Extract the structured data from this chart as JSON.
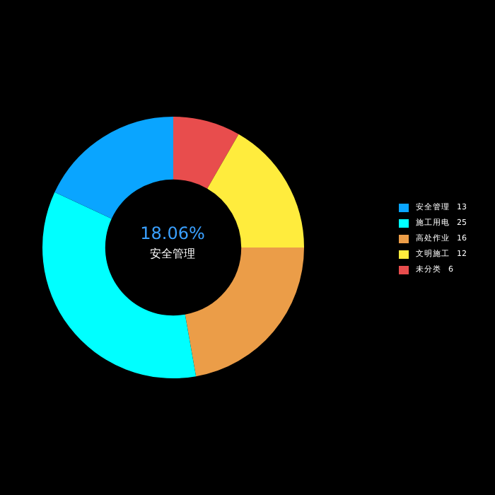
{
  "chart_data": {
    "type": "donut",
    "categories": [
      "安全管理",
      "施工用电",
      "高处作业",
      "文明施工",
      "未分类"
    ],
    "values": [
      13,
      25,
      16,
      12,
      6
    ],
    "colors": [
      "#0aa5ff",
      "#00ffff",
      "#eb9d48",
      "#ffec3d",
      "#e84d4d"
    ],
    "legend": "right",
    "data_labels": true,
    "annotations": [
      "18.06%",
      "安全管理"
    ]
  }
}
